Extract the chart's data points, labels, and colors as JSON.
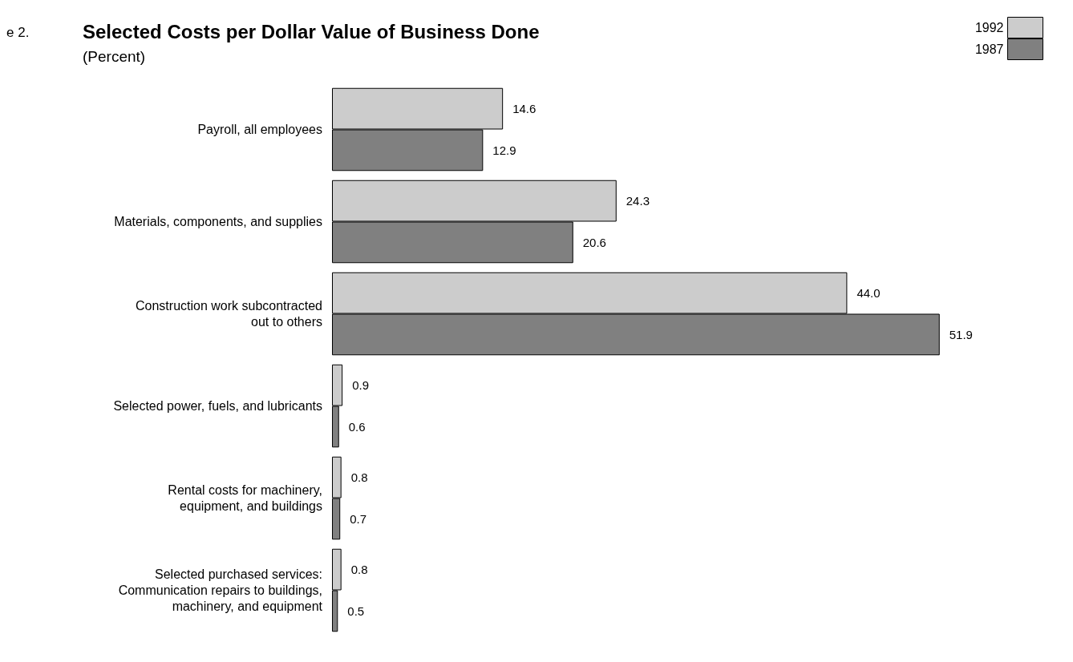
{
  "chart_data": {
    "type": "bar",
    "orientation": "horizontal",
    "title": "Selected Costs per Dollar Value of Business Done",
    "subtitle": "(Percent)",
    "annotations": [
      "e 2."
    ],
    "categories": [
      "Payroll, all employees",
      "Materials, components, and supplies",
      "Construction work subcontracted\nout to others",
      "Selected power, fuels, and lubricants",
      "Rental costs for machinery,\nequipment, and buildings",
      "Selected purchased services:\nCommunication repairs to buildings,\nmachinery, and equipment"
    ],
    "series": [
      {
        "name": "1992",
        "color": "#cccccc",
        "values": [
          14.6,
          24.3,
          44.0,
          0.9,
          0.8,
          0.8
        ],
        "value_labels": [
          "14.6",
          "24.3",
          "44.0",
          "0.9",
          "0.8",
          "0.8"
        ]
      },
      {
        "name": "1987",
        "color": "#808080",
        "values": [
          12.9,
          20.6,
          51.9,
          0.6,
          0.7,
          0.5
        ],
        "value_labels": [
          "12.9",
          "20.6",
          "51.9",
          "0.6",
          "0.7",
          "0.5"
        ]
      }
    ],
    "legend": "top right"
  }
}
